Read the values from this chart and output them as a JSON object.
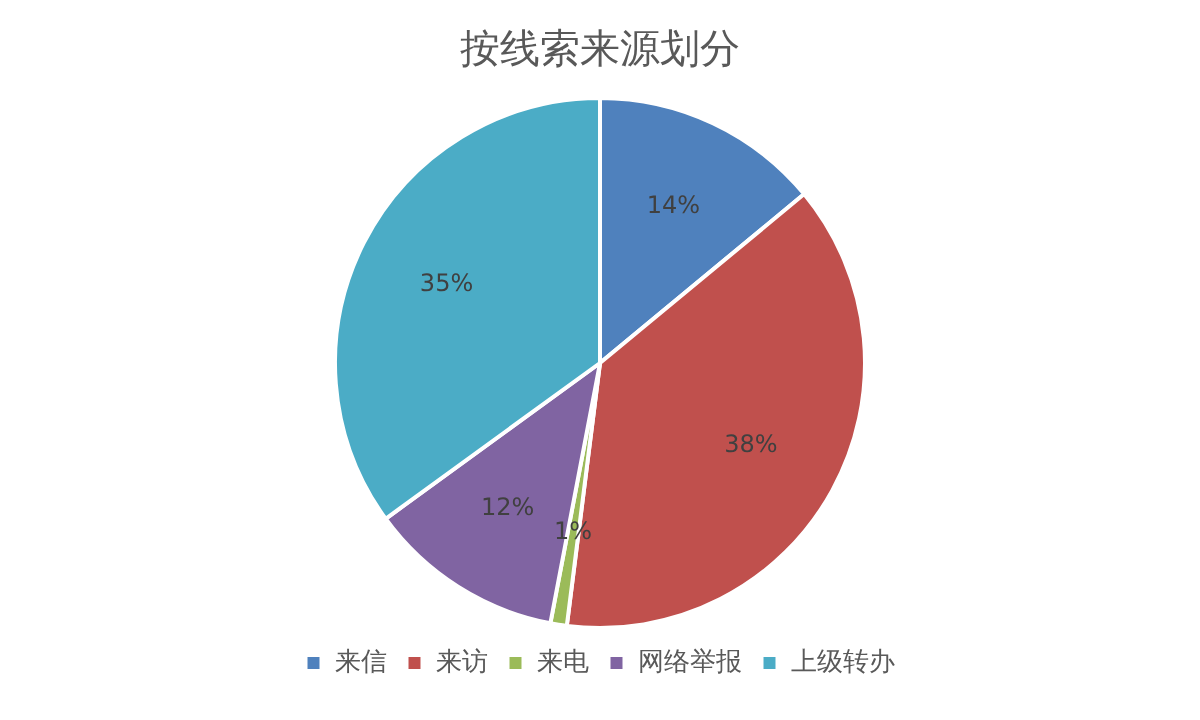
{
  "chart_data": {
    "type": "pie",
    "title": "按线索来源划分",
    "categories": [
      "来信",
      "来访",
      "来电",
      "网络举报",
      "上级转办"
    ],
    "values": [
      14,
      38,
      1,
      12,
      35
    ],
    "colors": [
      "#4f81bd",
      "#c0504d",
      "#9bbb59",
      "#8064a2",
      "#4bacc6"
    ],
    "value_labels": [
      "14%",
      "38%",
      "1%",
      "12%",
      "35%"
    ],
    "legend": "bottom"
  }
}
